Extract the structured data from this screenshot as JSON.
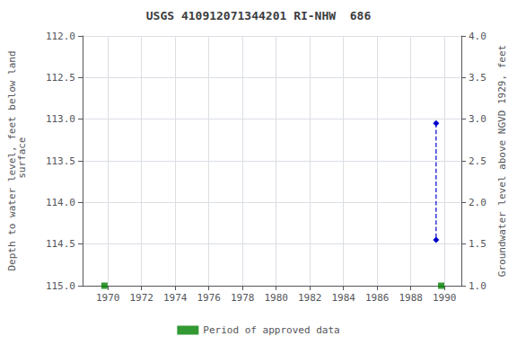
{
  "chart_data": {
    "type": "scatter",
    "title": "USGS 410912071344201 RI-NHW  686",
    "y_label": "Depth to water level, feet below land\n surface",
    "y2_label": "Groundwater level above NGVD 1929, feet",
    "xlim": [
      1968.5,
      1991.0
    ],
    "xticks": [
      1970,
      1972,
      1974,
      1976,
      1978,
      1980,
      1982,
      1984,
      1986,
      1988,
      1990
    ],
    "ylim": [
      115.0,
      112.0
    ],
    "yticks": [
      {
        "value": 112,
        "label": "112.0"
      },
      112.5,
      {
        "value": 113,
        "label": "113.0"
      },
      113.5,
      {
        "value": 114,
        "label": "114.0"
      },
      114.5,
      {
        "value": 115,
        "label": "115.0"
      }
    ],
    "y2lim": [
      1.0,
      4.0
    ],
    "y2ticks": [
      {
        "value": 1,
        "label": "1.0"
      },
      1.5,
      {
        "value": 2,
        "label": "2.0"
      },
      2.5,
      {
        "value": 3,
        "label": "3.0"
      },
      3.5,
      {
        "value": 4,
        "label": "4.0"
      }
    ],
    "grid": true,
    "legend": "bottom",
    "series": [
      {
        "name": "Period of approved data",
        "type": "scatter",
        "color": "#008000",
        "marker": "square",
        "x": [
          1969.8,
          1989.8
        ],
        "values": [
          115.0,
          115.0
        ]
      },
      {
        "type": "line",
        "color": "#0000cc",
        "marker": "diamond",
        "line_style": "dashed",
        "x": [
          1989.5,
          1989.5
        ],
        "values": [
          113.05,
          114.45
        ]
      }
    ]
  }
}
